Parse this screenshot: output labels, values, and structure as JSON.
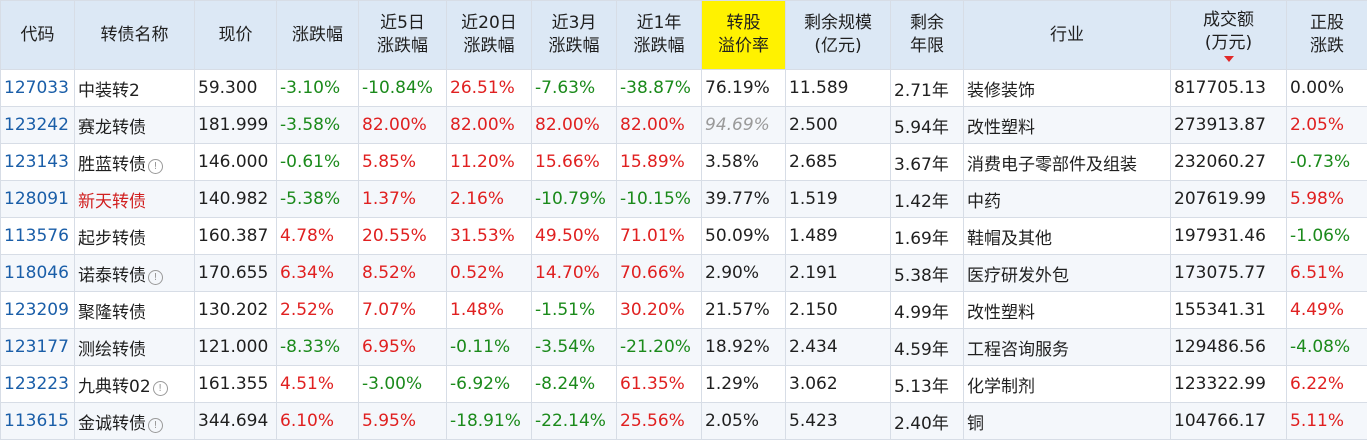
{
  "headers": [
    {
      "key": "code",
      "lines": [
        "代码"
      ]
    },
    {
      "key": "name",
      "lines": [
        "转债名称"
      ]
    },
    {
      "key": "price",
      "lines": [
        "现价"
      ]
    },
    {
      "key": "chg",
      "lines": [
        "涨跌幅"
      ]
    },
    {
      "key": "chg5d",
      "lines": [
        "近5日",
        "涨跌幅"
      ]
    },
    {
      "key": "chg20d",
      "lines": [
        "近20日",
        "涨跌幅"
      ]
    },
    {
      "key": "chg3m",
      "lines": [
        "近3月",
        "涨跌幅"
      ]
    },
    {
      "key": "chg1y",
      "lines": [
        "近1年",
        "涨跌幅"
      ]
    },
    {
      "key": "premium",
      "lines": [
        "转股",
        "溢价率"
      ],
      "highlight": true
    },
    {
      "key": "scale",
      "lines": [
        "剩余规模",
        "(亿元)"
      ]
    },
    {
      "key": "years",
      "lines": [
        "剩余",
        "年限"
      ]
    },
    {
      "key": "industry",
      "lines": [
        "行业"
      ]
    },
    {
      "key": "turnover",
      "lines": [
        "成交额",
        "(万元)"
      ],
      "sorted": "desc"
    },
    {
      "key": "stock_chg",
      "lines": [
        "正股",
        "涨跌"
      ]
    }
  ],
  "colors": {
    "up": "#e02020",
    "down": "#1b8a1b",
    "header_bg": "#dce8f5",
    "highlight": "#fff200",
    "code": "#1a5ea8"
  },
  "rows": [
    {
      "code": "127033",
      "name": "中装转2",
      "name_alert": false,
      "info": false,
      "price": "59.300",
      "chg": "-3.10%",
      "chg5d": "-10.84%",
      "chg20d": "26.51%",
      "chg3m": "-7.63%",
      "chg1y": "-38.87%",
      "premium": "76.19%",
      "premium_style": "",
      "scale": "11.589",
      "years": "2.71年",
      "industry": "装修装饰",
      "turnover": "817705.13",
      "stock_chg": "0.00%"
    },
    {
      "code": "123242",
      "name": "赛龙转债",
      "name_alert": false,
      "info": false,
      "price": "181.999",
      "chg": "-3.58%",
      "chg5d": "82.00%",
      "chg20d": "82.00%",
      "chg3m": "82.00%",
      "chg1y": "82.00%",
      "premium": "94.69%",
      "premium_style": "grey-italic",
      "scale": "2.500",
      "years": "5.94年",
      "industry": "改性塑料",
      "turnover": "273913.87",
      "stock_chg": "2.05%"
    },
    {
      "code": "123143",
      "name": "胜蓝转债",
      "name_alert": false,
      "info": true,
      "price": "146.000",
      "chg": "-0.61%",
      "chg5d": "5.85%",
      "chg20d": "11.20%",
      "chg3m": "15.66%",
      "chg1y": "15.89%",
      "premium": "3.58%",
      "premium_style": "",
      "scale": "2.685",
      "years": "3.67年",
      "industry": "消费电子零部件及组装",
      "turnover": "232060.27",
      "stock_chg": "-0.73%"
    },
    {
      "code": "128091",
      "name": "新天转债",
      "name_alert": true,
      "info": false,
      "price": "140.982",
      "chg": "-5.38%",
      "chg5d": "1.37%",
      "chg20d": "2.16%",
      "chg3m": "-10.79%",
      "chg1y": "-10.15%",
      "premium": "39.77%",
      "premium_style": "",
      "scale": "1.519",
      "years": "1.42年",
      "industry": "中药",
      "turnover": "207619.99",
      "stock_chg": "5.98%"
    },
    {
      "code": "113576",
      "name": "起步转债",
      "name_alert": false,
      "info": false,
      "price": "160.387",
      "chg": "4.78%",
      "chg5d": "20.55%",
      "chg20d": "31.53%",
      "chg3m": "49.50%",
      "chg1y": "71.01%",
      "premium": "50.09%",
      "premium_style": "",
      "scale": "1.489",
      "years": "1.69年",
      "industry": "鞋帽及其他",
      "turnover": "197931.46",
      "stock_chg": "-1.06%"
    },
    {
      "code": "118046",
      "name": "诺泰转债",
      "name_alert": false,
      "info": true,
      "price": "170.655",
      "chg": "6.34%",
      "chg5d": "8.52%",
      "chg20d": "0.52%",
      "chg3m": "14.70%",
      "chg1y": "70.66%",
      "premium": "2.90%",
      "premium_style": "",
      "scale": "2.191",
      "years": "5.38年",
      "industry": "医疗研发外包",
      "turnover": "173075.77",
      "stock_chg": "6.51%"
    },
    {
      "code": "123209",
      "name": "聚隆转债",
      "name_alert": false,
      "info": false,
      "price": "130.202",
      "chg": "2.52%",
      "chg5d": "7.07%",
      "chg20d": "1.48%",
      "chg3m": "-1.51%",
      "chg1y": "30.20%",
      "premium": "21.57%",
      "premium_style": "",
      "scale": "2.150",
      "years": "4.99年",
      "industry": "改性塑料",
      "turnover": "155341.31",
      "stock_chg": "4.49%"
    },
    {
      "code": "123177",
      "name": "测绘转债",
      "name_alert": false,
      "info": false,
      "price": "121.000",
      "chg": "-8.33%",
      "chg5d": "6.95%",
      "chg20d": "-0.11%",
      "chg3m": "-3.54%",
      "chg1y": "-21.20%",
      "premium": "18.92%",
      "premium_style": "",
      "scale": "2.434",
      "years": "4.59年",
      "industry": "工程咨询服务",
      "turnover": "129486.56",
      "stock_chg": "-4.08%"
    },
    {
      "code": "123223",
      "name": "九典转02",
      "name_alert": false,
      "info": true,
      "price": "161.355",
      "chg": "4.51%",
      "chg5d": "-3.00%",
      "chg20d": "-6.92%",
      "chg3m": "-8.24%",
      "chg1y": "61.35%",
      "premium": "1.29%",
      "premium_style": "",
      "scale": "3.062",
      "years": "5.13年",
      "industry": "化学制剂",
      "turnover": "123322.99",
      "stock_chg": "6.22%"
    },
    {
      "code": "113615",
      "name": "金诚转债",
      "name_alert": false,
      "info": true,
      "price": "344.694",
      "chg": "6.10%",
      "chg5d": "5.95%",
      "chg20d": "-18.91%",
      "chg3m": "-22.14%",
      "chg1y": "25.56%",
      "premium": "2.05%",
      "premium_style": "",
      "scale": "5.423",
      "years": "2.40年",
      "industry": "铜",
      "turnover": "104766.17",
      "stock_chg": "5.11%"
    }
  ]
}
